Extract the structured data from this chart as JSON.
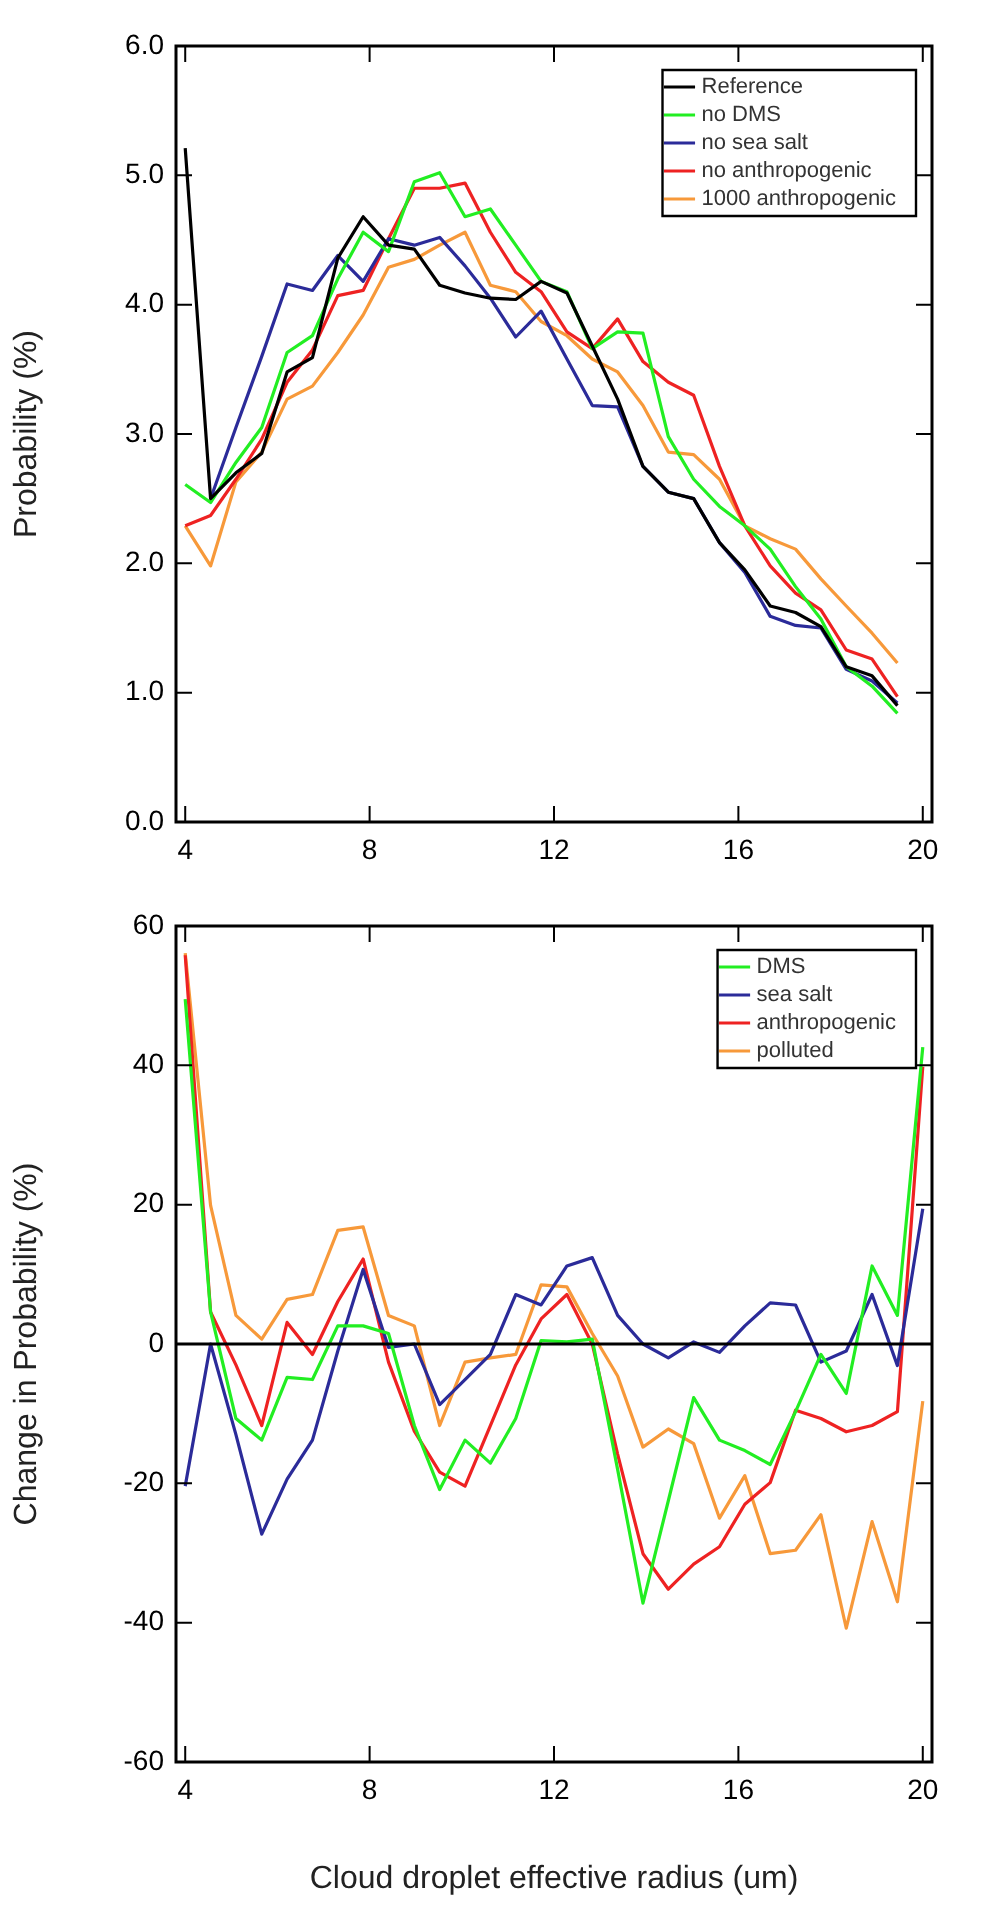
{
  "chart_data": [
    {
      "type": "line",
      "ylabel": "Probability (%)",
      "xlim": [
        3.8,
        20.2
      ],
      "xticks": [
        4,
        8,
        12,
        16,
        20
      ],
      "ylim": [
        0,
        6
      ],
      "yticks": [
        {
          "value": 0,
          "label": "0.0"
        },
        {
          "value": 1,
          "label": "1.0"
        },
        {
          "value": 2,
          "label": "2.0"
        },
        {
          "value": 3,
          "label": "3.0"
        },
        {
          "value": 4,
          "label": "4.0"
        },
        {
          "value": 5,
          "label": "5.0"
        },
        {
          "value": 6,
          "label": "6.0"
        }
      ],
      "x": [
        4.0,
        4.55,
        5.1,
        5.66,
        6.21,
        6.76,
        7.31,
        7.86,
        8.41,
        8.97,
        9.52,
        10.07,
        10.62,
        11.17,
        11.72,
        12.28,
        12.83,
        13.38,
        13.93,
        14.48,
        15.03,
        15.59,
        16.14,
        16.69,
        17.24,
        17.79,
        18.34,
        18.9,
        19.45
      ],
      "legend": "top right",
      "marker": "none",
      "line_style": "solid",
      "series": [
        {
          "name": "Reference",
          "color": "#000000",
          "values": [
            5.21,
            2.5,
            2.7,
            2.85,
            3.48,
            3.59,
            4.36,
            4.68,
            4.46,
            4.43,
            4.15,
            4.09,
            4.05,
            4.04,
            4.18,
            4.09,
            3.68,
            3.27,
            2.75,
            2.55,
            2.5,
            2.16,
            1.95,
            1.67,
            1.62,
            1.51,
            1.2,
            1.13,
            0.9
          ]
        },
        {
          "name": "no DMS",
          "color": "#22ee22",
          "values": [
            2.61,
            2.47,
            2.78,
            3.05,
            3.63,
            3.76,
            4.2,
            4.56,
            4.41,
            4.95,
            5.02,
            4.68,
            4.74,
            4.46,
            4.18,
            4.1,
            3.66,
            3.79,
            3.78,
            2.98,
            2.65,
            2.44,
            2.29,
            2.11,
            1.82,
            1.57,
            1.2,
            1.05,
            0.84
          ]
        },
        {
          "name": "no sea salt",
          "color": "#2b2b99",
          "values": [
            null,
            2.5,
            3.05,
            3.6,
            4.16,
            4.11,
            4.38,
            4.18,
            4.51,
            4.46,
            4.52,
            4.3,
            4.05,
            3.75,
            3.95,
            3.58,
            3.22,
            3.21,
            2.75,
            2.55,
            2.5,
            2.16,
            1.93,
            1.59,
            1.52,
            1.5,
            1.18,
            1.09,
            0.92
          ]
        },
        {
          "name": "no anthropogenic",
          "color": "#ee2222",
          "values": [
            2.29,
            2.37,
            2.65,
            2.96,
            3.4,
            3.65,
            4.07,
            4.11,
            4.51,
            4.9,
            4.9,
            4.94,
            4.56,
            4.25,
            4.1,
            3.79,
            3.66,
            3.89,
            3.56,
            3.4,
            3.3,
            2.75,
            2.29,
            1.98,
            1.77,
            1.64,
            1.33,
            1.26,
            0.97
          ]
        },
        {
          "name": "1000 anthropogenic",
          "color": "#f7993a",
          "values": [
            2.29,
            1.98,
            2.63,
            2.86,
            3.27,
            3.37,
            3.63,
            3.92,
            4.29,
            4.35,
            4.46,
            4.56,
            4.15,
            4.1,
            3.87,
            3.76,
            3.58,
            3.48,
            3.22,
            2.86,
            2.84,
            2.65,
            2.29,
            2.19,
            2.11,
            1.88,
            1.67,
            1.46,
            1.23
          ]
        }
      ]
    },
    {
      "type": "line",
      "xlabel": "Cloud droplet effective radius (um)",
      "ylabel": "Change in Probability (%)",
      "xlim": [
        3.8,
        20.2
      ],
      "xticks": [
        4,
        8,
        12,
        16,
        20
      ],
      "ylim": [
        -60,
        60
      ],
      "yticks": [
        -60,
        -40,
        -20,
        0,
        20,
        40,
        60
      ],
      "x": [
        4.0,
        4.55,
        5.1,
        5.66,
        6.21,
        6.76,
        7.31,
        7.86,
        8.41,
        8.97,
        9.52,
        10.07,
        10.62,
        11.17,
        11.72,
        12.28,
        12.83,
        13.38,
        13.93,
        14.48,
        15.03,
        15.59,
        16.14,
        16.69,
        17.24,
        17.79,
        18.34,
        18.9,
        19.45,
        20.0
      ],
      "legend": "top right",
      "marker": "none",
      "line_style": "solid",
      "ref_lines": [
        {
          "axis": "y",
          "value": 0,
          "color": "#000000"
        }
      ],
      "series": [
        {
          "name": "DMS",
          "color": "#22ee22",
          "values": [
            49.5,
            4.6,
            -10.7,
            -13.8,
            -4.8,
            -5.1,
            2.6,
            2.6,
            1.5,
            -11.7,
            -20.9,
            -13.8,
            -17.1,
            -10.7,
            0.5,
            0.3,
            0.7,
            -18,
            -37.2,
            -22.5,
            -7.7,
            -13.8,
            -15.3,
            -17.3,
            -9.7,
            -1.5,
            -7.1,
            11.2,
            4.1,
            42.6
          ]
        },
        {
          "name": "sea salt",
          "color": "#2b2b99",
          "values": [
            -20.4,
            0,
            -13,
            -27.3,
            -19.4,
            -13.8,
            -1,
            10.7,
            -0.5,
            0,
            -8.7,
            -5.1,
            -1.5,
            7.1,
            5.6,
            11.2,
            12.4,
            4.1,
            0,
            -2,
            0.3,
            -1.2,
            2.6,
            5.9,
            5.6,
            -2.6,
            -1,
            7.1,
            -3.1,
            19.4
          ]
        },
        {
          "name": "anthropogenic",
          "color": "#ee2222",
          "values": [
            55.8,
            4.6,
            -3,
            -11.7,
            3.1,
            -1.5,
            6.1,
            12.2,
            -2.6,
            -12.5,
            -18.4,
            -20.4,
            -11.7,
            -3,
            3.6,
            7.1,
            0,
            -15.8,
            -30.1,
            -35.2,
            -31.6,
            -29.1,
            -23,
            -19.9,
            -9.5,
            -10.7,
            -12.6,
            -11.7,
            -9.7,
            39.8
          ]
        },
        {
          "name": "polluted",
          "color": "#f7993a",
          "values": [
            56.1,
            19.9,
            4.1,
            0.7,
            6.4,
            7.1,
            16.3,
            16.8,
            4.1,
            2.6,
            -11.7,
            -2.6,
            -2,
            -1.5,
            8.5,
            8.2,
            1.5,
            -4.6,
            -14.8,
            -12.2,
            -14.3,
            -25,
            -18.9,
            -30.1,
            -29.6,
            -24.5,
            -40.8,
            -25.5,
            -37,
            -8.2
          ]
        }
      ]
    }
  ]
}
